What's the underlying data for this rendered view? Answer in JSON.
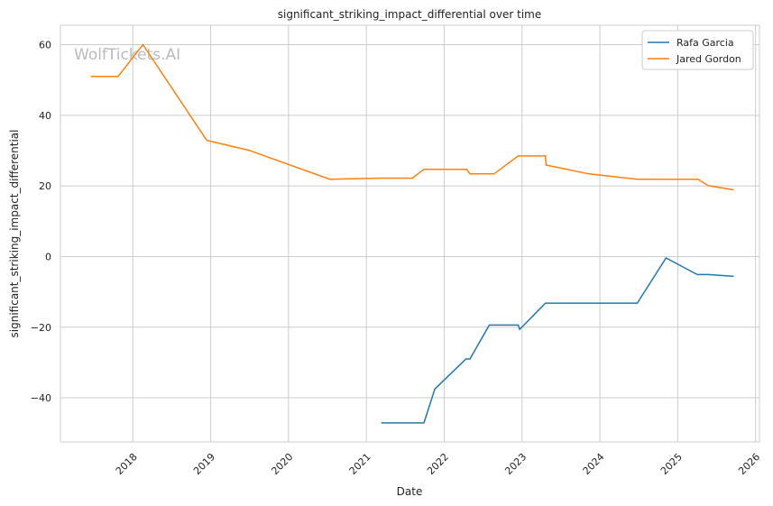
{
  "chart_data": {
    "type": "line",
    "title": "significant_striking_impact_differential over time",
    "xlabel": "Date",
    "ylabel": "significant_striking_impact_differential",
    "xlim": [
      2017.07,
      2026.05
    ],
    "ylim": [
      -52.5,
      65.5
    ],
    "xticks": [
      2018,
      2019,
      2020,
      2021,
      2022,
      2023,
      2024,
      2025,
      2026
    ],
    "xtick_labels": [
      "2018",
      "2019",
      "2020",
      "2021",
      "2022",
      "2023",
      "2024",
      "2025",
      "2026"
    ],
    "yticks": [
      60,
      40,
      20,
      0,
      -20,
      -40
    ],
    "ytick_labels": [
      "60",
      "40",
      "20",
      "0",
      "−20",
      "−40"
    ],
    "grid": true,
    "legend_position": "top-right",
    "watermark": "WolfTickets.AI",
    "series": [
      {
        "name": "Rafa Garcia",
        "color": "#1f77b4",
        "x": [
          2021.19,
          2021.74,
          2021.88,
          2022.28,
          2022.33,
          2022.58,
          2022.95,
          2022.97,
          2023.3,
          2024.48,
          2024.85,
          2025.25,
          2025.39,
          2025.72
        ],
        "y": [
          -47.1,
          -47.1,
          -37.5,
          -29.0,
          -29.0,
          -19.4,
          -19.4,
          -20.6,
          -13.2,
          -13.2,
          -0.4,
          -5.1,
          -5.1,
          -5.6
        ]
      },
      {
        "name": "Jared Gordon",
        "color": "#ff7f0e",
        "x": [
          2017.46,
          2017.81,
          2018.13,
          2018.95,
          2019.49,
          2020.53,
          2021.19,
          2021.59,
          2021.74,
          2022.29,
          2022.33,
          2022.64,
          2022.95,
          2023.3,
          2023.31,
          2023.86,
          2024.48,
          2025.26,
          2025.39,
          2025.72
        ],
        "y": [
          51.0,
          51.0,
          60.0,
          32.9,
          30.1,
          21.9,
          22.2,
          22.2,
          24.7,
          24.7,
          23.4,
          23.4,
          28.5,
          28.5,
          25.9,
          23.4,
          21.9,
          21.9,
          20.1,
          18.9
        ]
      }
    ]
  }
}
